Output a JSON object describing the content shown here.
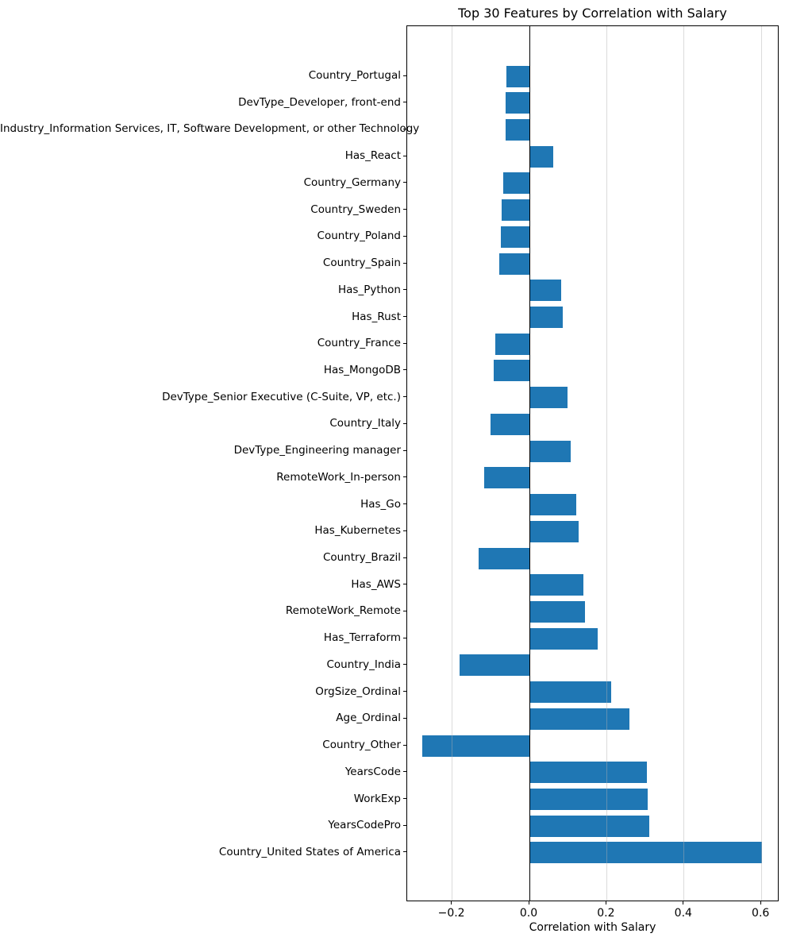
{
  "chart_data": {
    "type": "bar",
    "orientation": "horizontal",
    "title": "Top 30 Features by Correlation with Salary",
    "xlabel": "Correlation with Salary",
    "ylabel": "",
    "bar_color": "#1f77b4",
    "zero_line_color": "#000000",
    "grid": "vertical",
    "legend": "none",
    "xlim": [
      -0.316,
      0.647
    ],
    "xticks": {
      "values": [
        -0.2,
        0.0,
        0.2,
        0.4,
        0.6
      ],
      "labels": [
        "−0.2",
        "0.0",
        "0.2",
        "0.4",
        "0.6"
      ]
    },
    "categories": [
      "Country_Portugal",
      "DevType_Developer, front-end",
      "Industry_Information Services, IT, Software Development, or other Technology",
      "Has_React",
      "Country_Germany",
      "Country_Sweden",
      "Country_Poland",
      "Country_Spain",
      "Has_Python",
      "Has_Rust",
      "Country_France",
      "Has_MongoDB",
      "DevType_Senior Executive (C-Suite, VP, etc.)",
      "Country_Italy",
      "DevType_Engineering manager",
      "RemoteWork_In-person",
      "Has_Go",
      "Has_Kubernetes",
      "Country_Brazil",
      "Has_AWS",
      "RemoteWork_Remote",
      "Has_Terraform",
      "Country_India",
      "OrgSize_Ordinal",
      "Age_Ordinal",
      "Country_Other",
      "YearsCode",
      "WorkExp",
      "YearsCodePro",
      "Country_United States of America"
    ],
    "values": [
      -0.06,
      -0.061,
      -0.061,
      0.062,
      -0.067,
      -0.072,
      -0.074,
      -0.079,
      0.083,
      0.086,
      -0.088,
      -0.093,
      0.099,
      -0.1,
      0.107,
      -0.117,
      0.121,
      0.128,
      -0.132,
      0.14,
      0.144,
      0.177,
      -0.181,
      0.211,
      0.259,
      -0.277,
      0.304,
      0.306,
      0.31,
      0.602
    ]
  }
}
